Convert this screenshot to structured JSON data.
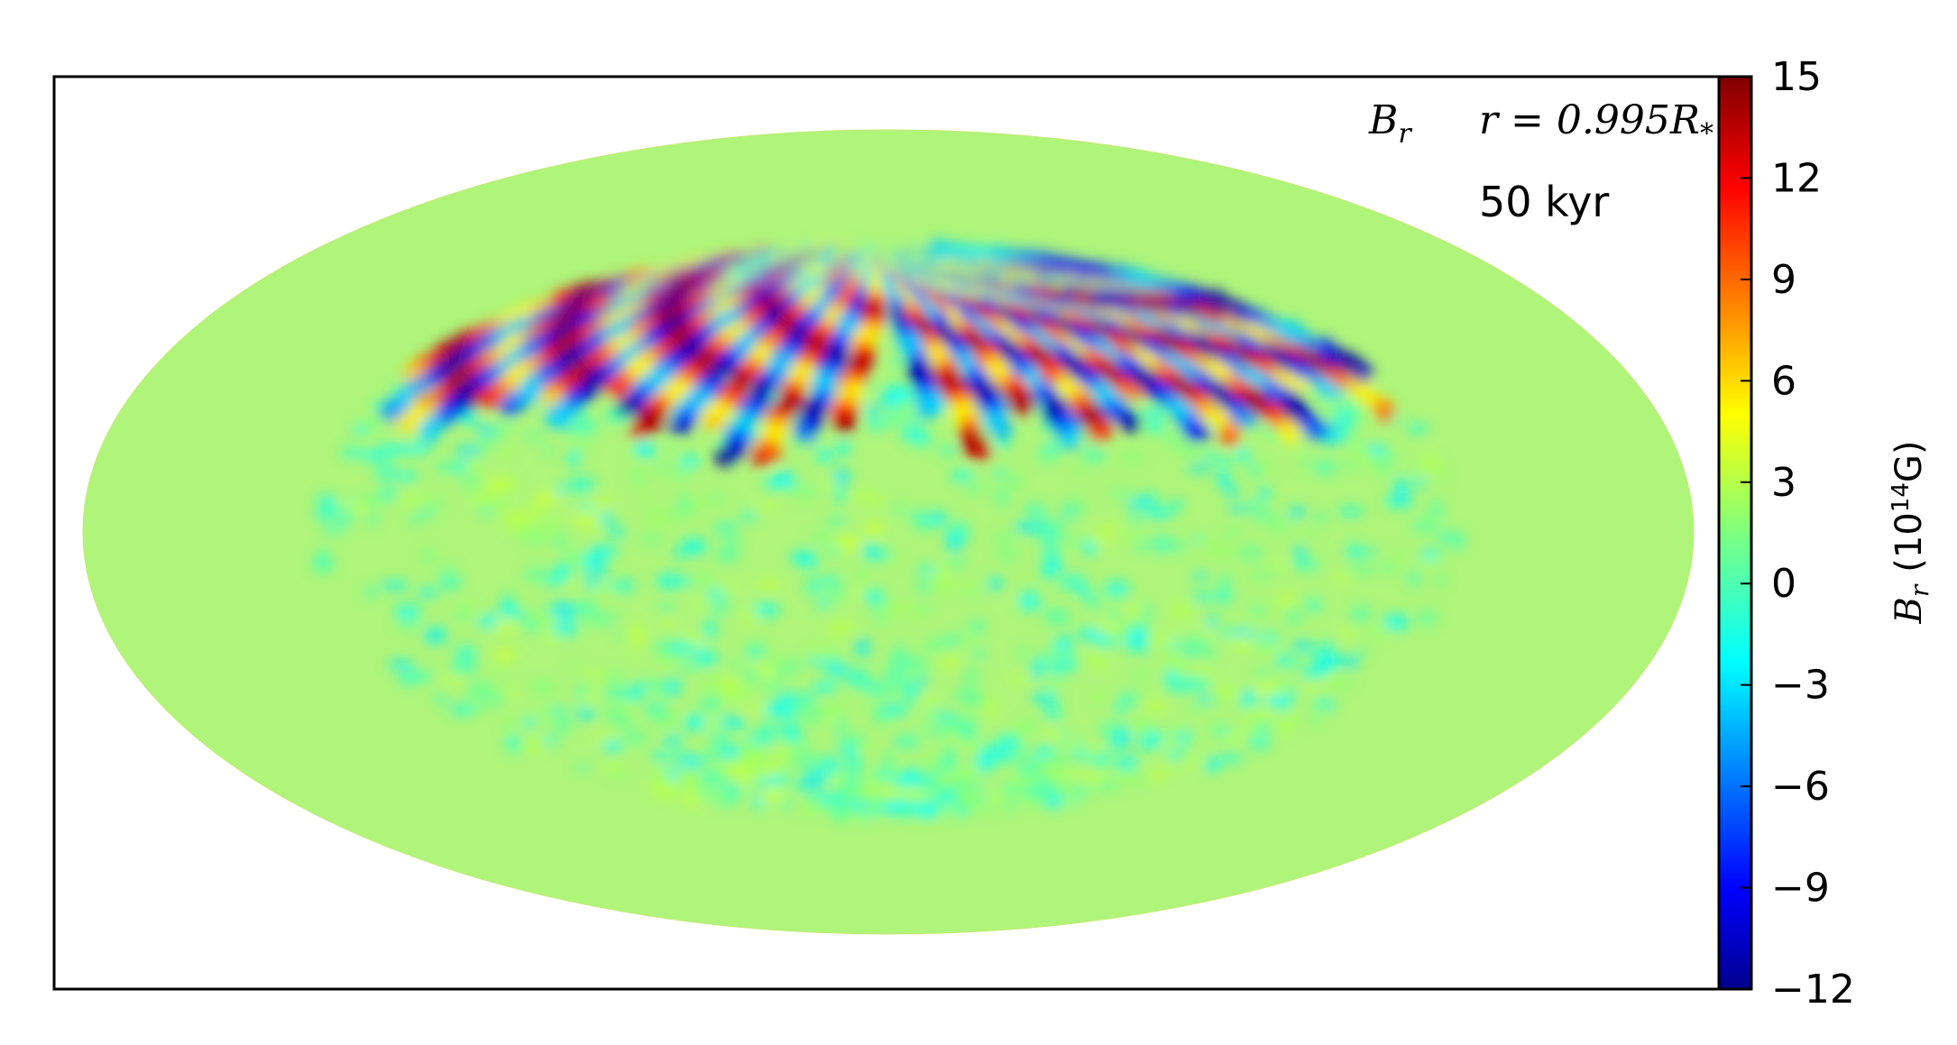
{
  "chart_data": {
    "type": "heatmap",
    "projection": "Hammer (all-sky ellipse)",
    "field_label": "B_r",
    "field_label_display": "B",
    "field_label_sub": "r",
    "radius_label": "r = 0.995R",
    "radius_label_sub": "*",
    "time_label": "50 kyr",
    "colorbar": {
      "colormap": "jet",
      "range": [
        -12,
        15
      ],
      "ticks": [
        15,
        12,
        9,
        6,
        3,
        0,
        -3,
        -6,
        -9,
        -12
      ],
      "tick_labels": [
        "15",
        "12",
        "9",
        "6",
        "3",
        "0",
        "−3",
        "−6",
        "−9",
        "−12"
      ],
      "label_prefix": "B",
      "label_sub": "r",
      "label_unit_pre": "(10",
      "label_unit_exp": "14",
      "label_unit_post": "G)"
    },
    "northern_hemisphere": {
      "description": "radial field bands alternating positive (red/orange) and negative (blue), extending from pole to mid-latitudes",
      "peak_positive": 14,
      "peak_negative": -11
    },
    "southern_hemisphere": {
      "description": "weak small-scale field near zero (green/yellow)",
      "typical_range": [
        -2,
        3
      ]
    }
  }
}
